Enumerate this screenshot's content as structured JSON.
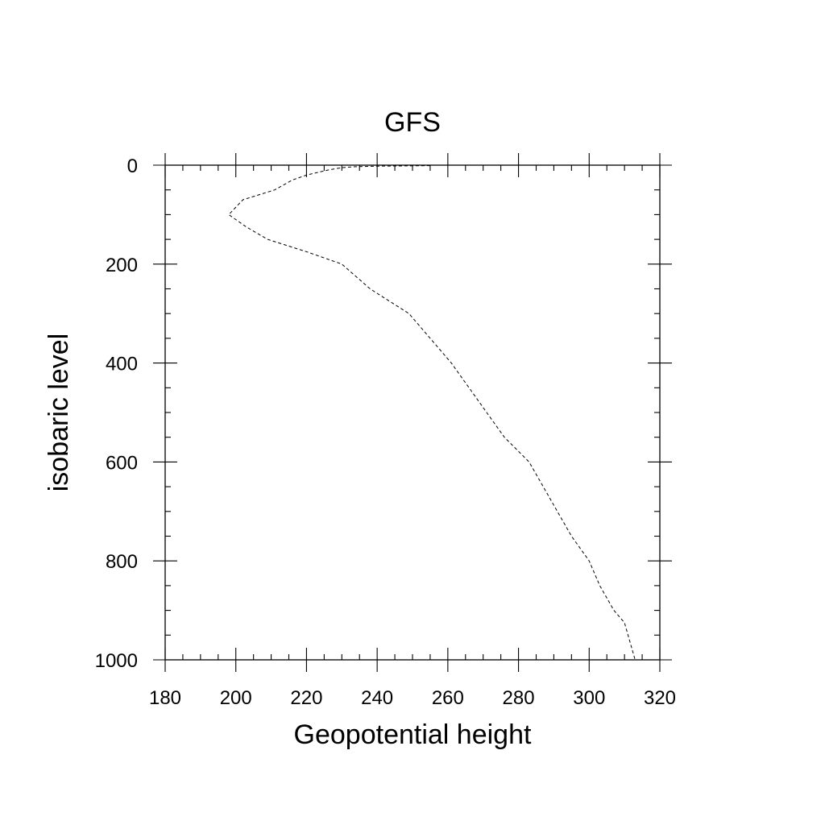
{
  "chart_data": {
    "type": "line",
    "title": "GFS",
    "xlabel": "Geopotential height",
    "ylabel": "isobaric level",
    "xlim": [
      180,
      320
    ],
    "ylim": [
      0,
      1000
    ],
    "y_inverted": true,
    "grid": false,
    "legend": "none",
    "line_style": "dashed",
    "line_color": "#000000",
    "x_major_ticks": [
      180,
      200,
      220,
      240,
      260,
      280,
      300,
      320
    ],
    "x_minor_step": 5,
    "y_major_ticks": [
      0,
      200,
      400,
      600,
      800,
      1000
    ],
    "y_minor_step": 50,
    "x_tick_labels": [
      "180",
      "200",
      "220",
      "240",
      "260",
      "280",
      "300",
      "320"
    ],
    "y_tick_labels": [
      "0",
      "200",
      "400",
      "600",
      "800",
      "1000"
    ],
    "series": [
      {
        "points": [
          {
            "x": 255,
            "y": 1
          },
          {
            "x": 240,
            "y": 2
          },
          {
            "x": 234,
            "y": 3
          },
          {
            "x": 230,
            "y": 5
          },
          {
            "x": 226,
            "y": 10
          },
          {
            "x": 220,
            "y": 20
          },
          {
            "x": 216,
            "y": 30
          },
          {
            "x": 211,
            "y": 50
          },
          {
            "x": 202,
            "y": 70
          },
          {
            "x": 198,
            "y": 100
          },
          {
            "x": 203,
            "y": 125
          },
          {
            "x": 209,
            "y": 150
          },
          {
            "x": 220,
            "y": 175
          },
          {
            "x": 230,
            "y": 200
          },
          {
            "x": 238,
            "y": 250
          },
          {
            "x": 249,
            "y": 300
          },
          {
            "x": 255,
            "y": 350
          },
          {
            "x": 261,
            "y": 400
          },
          {
            "x": 266,
            "y": 450
          },
          {
            "x": 271,
            "y": 500
          },
          {
            "x": 276,
            "y": 550
          },
          {
            "x": 283,
            "y": 600
          },
          {
            "x": 287,
            "y": 650
          },
          {
            "x": 291,
            "y": 700
          },
          {
            "x": 295,
            "y": 750
          },
          {
            "x": 300,
            "y": 800
          },
          {
            "x": 303,
            "y": 850
          },
          {
            "x": 307,
            "y": 900
          },
          {
            "x": 310,
            "y": 925
          },
          {
            "x": 311,
            "y": 950
          },
          {
            "x": 312,
            "y": 975
          },
          {
            "x": 313,
            "y": 1000
          }
        ]
      }
    ]
  }
}
